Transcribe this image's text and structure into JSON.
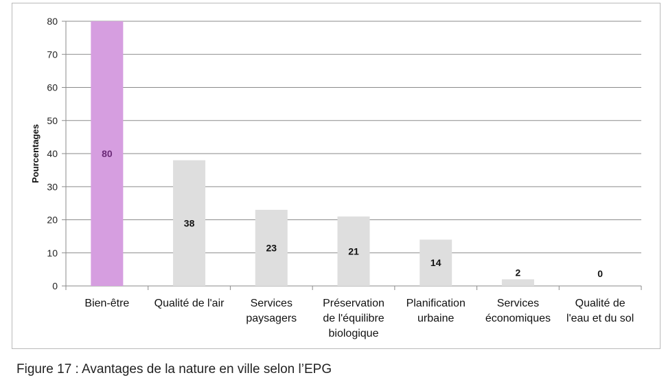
{
  "caption": "Figure 17 : Avantages de la nature en ville selon l’EPG",
  "chart_data": {
    "type": "bar",
    "ylabel": "Pourcentages",
    "xlabel": "",
    "ylim": [
      0,
      80
    ],
    "yticks": [
      0,
      10,
      20,
      30,
      40,
      50,
      60,
      70,
      80
    ],
    "grid": true,
    "legend": "none",
    "categories": [
      [
        "Bien-être"
      ],
      [
        "Qualité de l'air"
      ],
      [
        "Services",
        "paysagers"
      ],
      [
        "Préservation",
        "de l'équilibre",
        "biologique"
      ],
      [
        "Planification",
        "urbaine"
      ],
      [
        "Services",
        "économiques"
      ],
      [
        "Qualité de",
        "l'eau et du sol"
      ]
    ],
    "values": [
      80,
      38,
      23,
      21,
      14,
      2,
      0
    ],
    "data_labels": [
      "80",
      "38",
      "23",
      "21",
      "14",
      "2",
      "0"
    ],
    "colors": {
      "highlight": "#d69ee0",
      "highlight_label": "#6b2a77",
      "bar": "#dedede",
      "label": "#111111",
      "grid": "#8a8a8a",
      "axis": "#8a8a8a"
    },
    "highlight_index": 0
  }
}
